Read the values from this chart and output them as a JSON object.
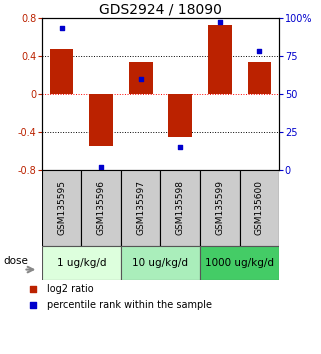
{
  "title": "GDS2924 / 18090",
  "samples": [
    "GSM135595",
    "GSM135596",
    "GSM135597",
    "GSM135598",
    "GSM135599",
    "GSM135600"
  ],
  "log2_ratios": [
    0.47,
    -0.55,
    0.33,
    -0.45,
    0.72,
    0.33
  ],
  "percentile_ranks": [
    93,
    2,
    60,
    15,
    97,
    78
  ],
  "bar_color": "#bb2200",
  "dot_color": "#0000cc",
  "ylim_left": [
    -0.8,
    0.8
  ],
  "ylim_right": [
    0,
    100
  ],
  "yticks_left": [
    -0.8,
    -0.4,
    0.0,
    0.4,
    0.8
  ],
  "yticks_right": [
    0,
    25,
    50,
    75,
    100
  ],
  "ytick_labels_right": [
    "0",
    "25",
    "50",
    "75",
    "100%"
  ],
  "hlines": [
    -0.4,
    0.0,
    0.4
  ],
  "hline_colors": [
    "black",
    "red",
    "black"
  ],
  "hline_styles": [
    "dotted",
    "dotted",
    "dotted"
  ],
  "dose_groups": [
    {
      "label": "1 ug/kg/d",
      "indices": [
        0,
        1
      ],
      "color": "#ddffdd"
    },
    {
      "label": "10 ug/kg/d",
      "indices": [
        2,
        3
      ],
      "color": "#aaeebb"
    },
    {
      "label": "1000 ug/kg/d",
      "indices": [
        4,
        5
      ],
      "color": "#44cc66"
    }
  ],
  "dose_label": "dose",
  "legend_bar_label": "log2 ratio",
  "legend_dot_label": "percentile rank within the sample",
  "title_fontsize": 10,
  "tick_fontsize": 7,
  "sample_label_fontsize": 6.5,
  "dose_fontsize": 7.5,
  "legend_fontsize": 7,
  "background_color": "#ffffff",
  "plot_bg_color": "#ffffff",
  "sample_box_color": "#cccccc",
  "border_color": "#000000"
}
